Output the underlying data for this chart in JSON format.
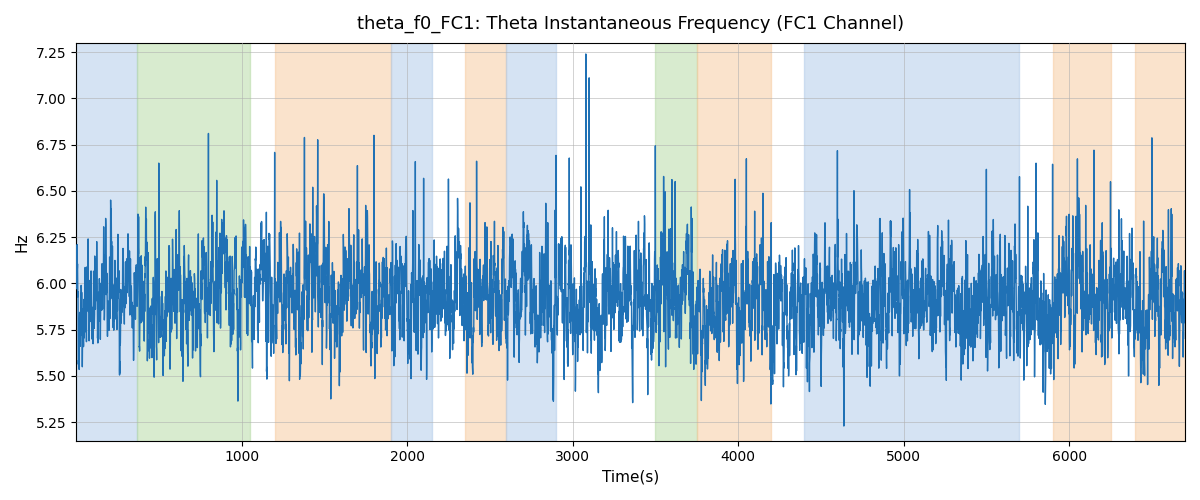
{
  "title": "theta_f0_FC1: Theta Instantaneous Frequency (FC1 Channel)",
  "xlabel": "Time(s)",
  "ylabel": "Hz",
  "xlim": [
    0,
    6700
  ],
  "ylim": [
    5.15,
    7.3
  ],
  "line_color": "#2071b5",
  "line_width": 1.0,
  "background_color": "#ffffff",
  "seed": 42,
  "n_points": 6700,
  "mean_freq": 5.92,
  "std_freq": 0.18,
  "colored_regions": [
    {
      "start": 0,
      "end": 370,
      "color": "#adc9e8",
      "alpha": 0.5
    },
    {
      "start": 370,
      "end": 1050,
      "color": "#b3d9a0",
      "alpha": 0.5
    },
    {
      "start": 1200,
      "end": 1900,
      "color": "#f7c89b",
      "alpha": 0.5
    },
    {
      "start": 1900,
      "end": 2150,
      "color": "#adc9e8",
      "alpha": 0.5
    },
    {
      "start": 2350,
      "end": 2600,
      "color": "#f7c89b",
      "alpha": 0.5
    },
    {
      "start": 2600,
      "end": 2900,
      "color": "#adc9e8",
      "alpha": 0.5
    },
    {
      "start": 3500,
      "end": 3750,
      "color": "#b3d9a0",
      "alpha": 0.5
    },
    {
      "start": 3750,
      "end": 4200,
      "color": "#f7c89b",
      "alpha": 0.5
    },
    {
      "start": 4400,
      "end": 5700,
      "color": "#adc9e8",
      "alpha": 0.5
    },
    {
      "start": 5900,
      "end": 6250,
      "color": "#f7c89b",
      "alpha": 0.5
    },
    {
      "start": 6400,
      "end": 6700,
      "color": "#f7c89b",
      "alpha": 0.5
    }
  ],
  "yticks": [
    5.25,
    5.5,
    5.75,
    6.0,
    6.25,
    6.5,
    6.75,
    7.0,
    7.25
  ],
  "xticks": [
    1000,
    2000,
    3000,
    4000,
    5000,
    6000
  ]
}
